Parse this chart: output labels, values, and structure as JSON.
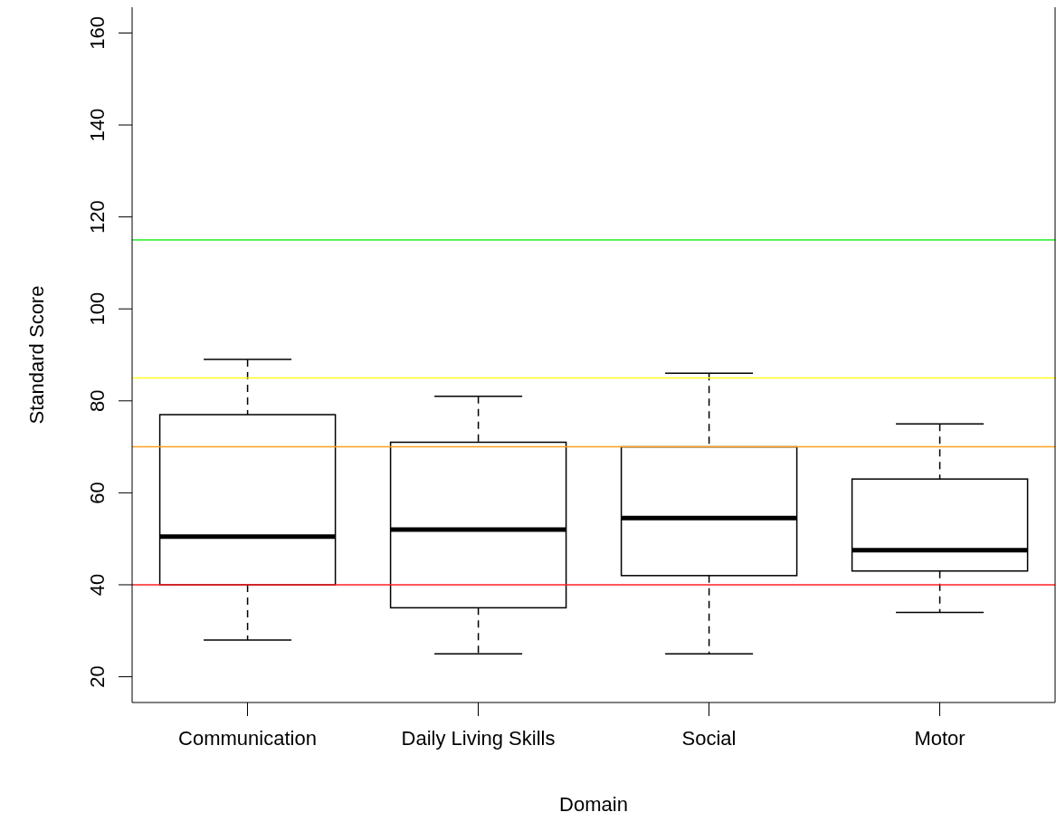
{
  "chart_data": {
    "type": "box",
    "xlabel": "Domain",
    "ylabel": "Standard Score",
    "categories": [
      "Communication",
      "Daily Living Skills",
      "Social",
      "Motor"
    ],
    "boxes": [
      {
        "low": 28,
        "q1": 40,
        "median": 50.5,
        "q3": 77,
        "high": 89
      },
      {
        "low": 25,
        "q1": 35,
        "median": 52,
        "q3": 71,
        "high": 81
      },
      {
        "low": 25,
        "q1": 42,
        "median": 54.5,
        "q3": 70,
        "high": 86
      },
      {
        "low": 34,
        "q1": 43,
        "median": 47.5,
        "q3": 63,
        "high": 75
      }
    ],
    "ylim": [
      14.4,
      165.6
    ],
    "yticks": [
      20,
      40,
      60,
      80,
      100,
      120,
      140,
      160
    ],
    "ref_lines": [
      {
        "axis": "y",
        "value": 115,
        "color": "#22ee22"
      },
      {
        "axis": "y",
        "value": 85,
        "color": "#ffff22"
      },
      {
        "axis": "y",
        "value": 70,
        "color": "#ffa020"
      },
      {
        "axis": "y",
        "value": 40,
        "color": "#ff2020"
      }
    ]
  }
}
